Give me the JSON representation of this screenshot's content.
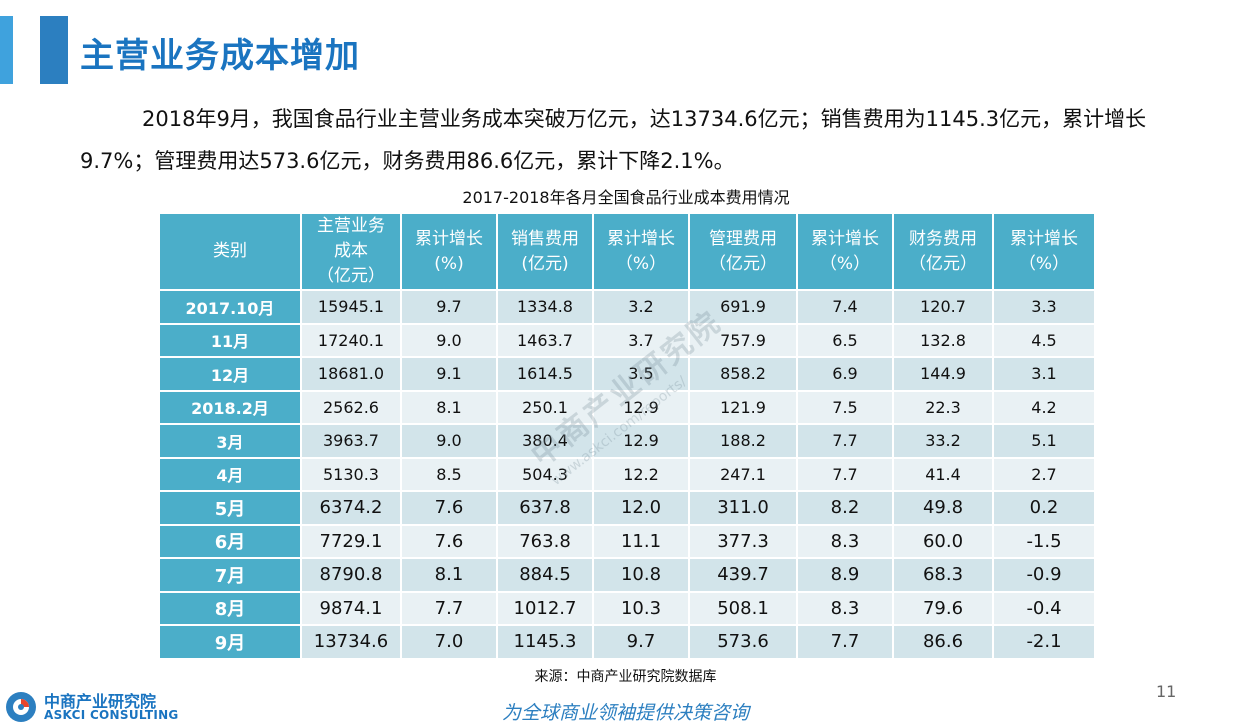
{
  "page": {
    "title": "主营业务成本增加",
    "intro": "2018年9月，我国食品行业主营业务成本突破万亿元，达13734.6亿元；销售费用为1145.3亿元，累计增长9.7%；管理费用达573.6亿元，财务费用86.6亿元，累计下降2.1%。",
    "page_number": "11"
  },
  "table": {
    "title": "2017-2018年各月全国食品行业成本费用情况",
    "headers": [
      "类别",
      "主营业务\n成本\n（亿元）",
      "累计增长\n(%)",
      "销售费用\n(亿元)",
      "累计增长\n（%）",
      "管理费用\n（亿元）",
      "累计增长\n（%）",
      "财务费用\n（亿元）",
      "累计增长\n（%）"
    ],
    "rows": [
      [
        "2017.10月",
        "15945.1",
        "9.7",
        "1334.8",
        "3.2",
        "691.9",
        "7.4",
        "120.7",
        "3.3"
      ],
      [
        "11月",
        "17240.1",
        "9.0",
        "1463.7",
        "3.7",
        "757.9",
        "6.5",
        "132.8",
        "4.5"
      ],
      [
        "12月",
        "18681.0",
        "9.1",
        "1614.5",
        "3.5",
        "858.2",
        "6.9",
        "144.9",
        "3.1"
      ],
      [
        "2018.2月",
        "2562.6",
        "8.1",
        "250.1",
        "12.9",
        "121.9",
        "7.5",
        "22.3",
        "4.2"
      ],
      [
        "3月",
        "3963.7",
        "9.0",
        "380.4",
        "12.9",
        "188.2",
        "7.7",
        "33.2",
        "5.1"
      ],
      [
        "4月",
        "5130.3",
        "8.5",
        "504.3",
        "12.2",
        "247.1",
        "7.7",
        "41.4",
        "2.7"
      ],
      [
        "5月",
        "6374.2",
        "7.6",
        "637.8",
        "12.0",
        "311.0",
        "8.2",
        "49.8",
        "0.2"
      ],
      [
        "6月",
        "7729.1",
        "7.6",
        "763.8",
        "11.1",
        "377.3",
        "8.3",
        "60.0",
        "-1.5"
      ],
      [
        "7月",
        "8790.8",
        "8.1",
        "884.5",
        "10.8",
        "439.7",
        "8.9",
        "68.3",
        "-0.9"
      ],
      [
        "8月",
        "9874.1",
        "7.7",
        "1012.7",
        "10.3",
        "508.1",
        "8.3",
        "79.6",
        "-0.4"
      ],
      [
        "9月",
        "13734.6",
        "7.0",
        "1145.3",
        "9.7",
        "573.6",
        "7.7",
        "86.6",
        "-2.1"
      ]
    ],
    "source": "来源：中商产业研究院数据库"
  },
  "watermark": {
    "name": "中商产业研究院",
    "url": "www.askci.com/reports/"
  },
  "footer": {
    "logo_cn": "中商产业研究院",
    "logo_en": "ASKCI CONSULTING",
    "slogan": "为全球商业领袖提供决策咨询"
  },
  "colors": {
    "title_blue": "#1a74c0",
    "header_teal": "#4baec9",
    "row_dark": "#d2e4ea",
    "row_light": "#e9f1f4"
  }
}
